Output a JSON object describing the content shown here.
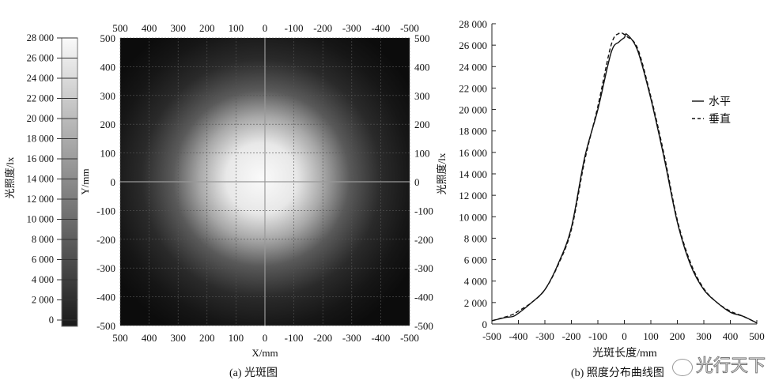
{
  "chart_data": [
    {
      "type": "heatmap",
      "caption": "(a) 光斑图",
      "xlabel": "X/mm",
      "ylabel": "Y/mm",
      "x_ticks": [
        500,
        400,
        300,
        200,
        100,
        0,
        -100,
        -200,
        -300,
        -400,
        -500
      ],
      "y_ticks": [
        500,
        400,
        300,
        200,
        100,
        0,
        -100,
        -200,
        -300,
        -400,
        -500
      ],
      "xlim": [
        500,
        -500
      ],
      "ylim": [
        -500,
        500
      ],
      "grid": true,
      "colorbar": {
        "label": "光照度/lx",
        "ticks": [
          0,
          2000,
          4000,
          6000,
          8000,
          10000,
          12000,
          14000,
          16000,
          18000,
          20000,
          22000,
          24000,
          26000,
          28000
        ],
        "range": [
          0,
          28000
        ],
        "colormap": "grayscale"
      },
      "peak_value": 27000,
      "peak_position": [
        0,
        0
      ]
    },
    {
      "type": "line",
      "caption": "(b) 照度分布曲线图",
      "xlabel": "光斑长度/mm",
      "ylabel": "光照度/lx",
      "xlim": [
        -500,
        500
      ],
      "ylim": [
        0,
        28000
      ],
      "x_ticks": [
        -500,
        -400,
        -300,
        -200,
        -100,
        0,
        100,
        200,
        300,
        400,
        500
      ],
      "y_ticks": [
        0,
        2000,
        4000,
        6000,
        8000,
        10000,
        12000,
        14000,
        16000,
        18000,
        20000,
        22000,
        24000,
        26000,
        28000
      ],
      "tick_labels_y": [
        "0",
        "2 000",
        "4 000",
        "6 000",
        "8 000",
        "10 000",
        "12 000",
        "14 000",
        "16 000",
        "18 000",
        "20 000",
        "22 000",
        "24 000",
        "26 000",
        "28 000"
      ],
      "grid": false,
      "legend": "right",
      "x": [
        -500,
        -450,
        -420,
        -400,
        -350,
        -300,
        -250,
        -200,
        -150,
        -100,
        -50,
        -20,
        0,
        10,
        50,
        100,
        150,
        200,
        250,
        300,
        350,
        400,
        450,
        500
      ],
      "series": [
        {
          "name": "水平",
          "style": "solid",
          "values": [
            300,
            600,
            700,
            1000,
            2000,
            3200,
            5600,
            9000,
            15500,
            20000,
            25300,
            26300,
            26700,
            27000,
            25500,
            21000,
            15500,
            9500,
            5500,
            3200,
            2000,
            1100,
            700,
            100
          ]
        },
        {
          "name": "垂直",
          "style": "dashed",
          "values": [
            300,
            650,
            900,
            1200,
            2000,
            3200,
            5500,
            8800,
            15200,
            20300,
            26000,
            27100,
            27000,
            26800,
            25700,
            21200,
            15800,
            9700,
            5700,
            3300,
            2000,
            1200,
            700,
            100
          ]
        }
      ]
    }
  ],
  "watermark": "光行天下"
}
